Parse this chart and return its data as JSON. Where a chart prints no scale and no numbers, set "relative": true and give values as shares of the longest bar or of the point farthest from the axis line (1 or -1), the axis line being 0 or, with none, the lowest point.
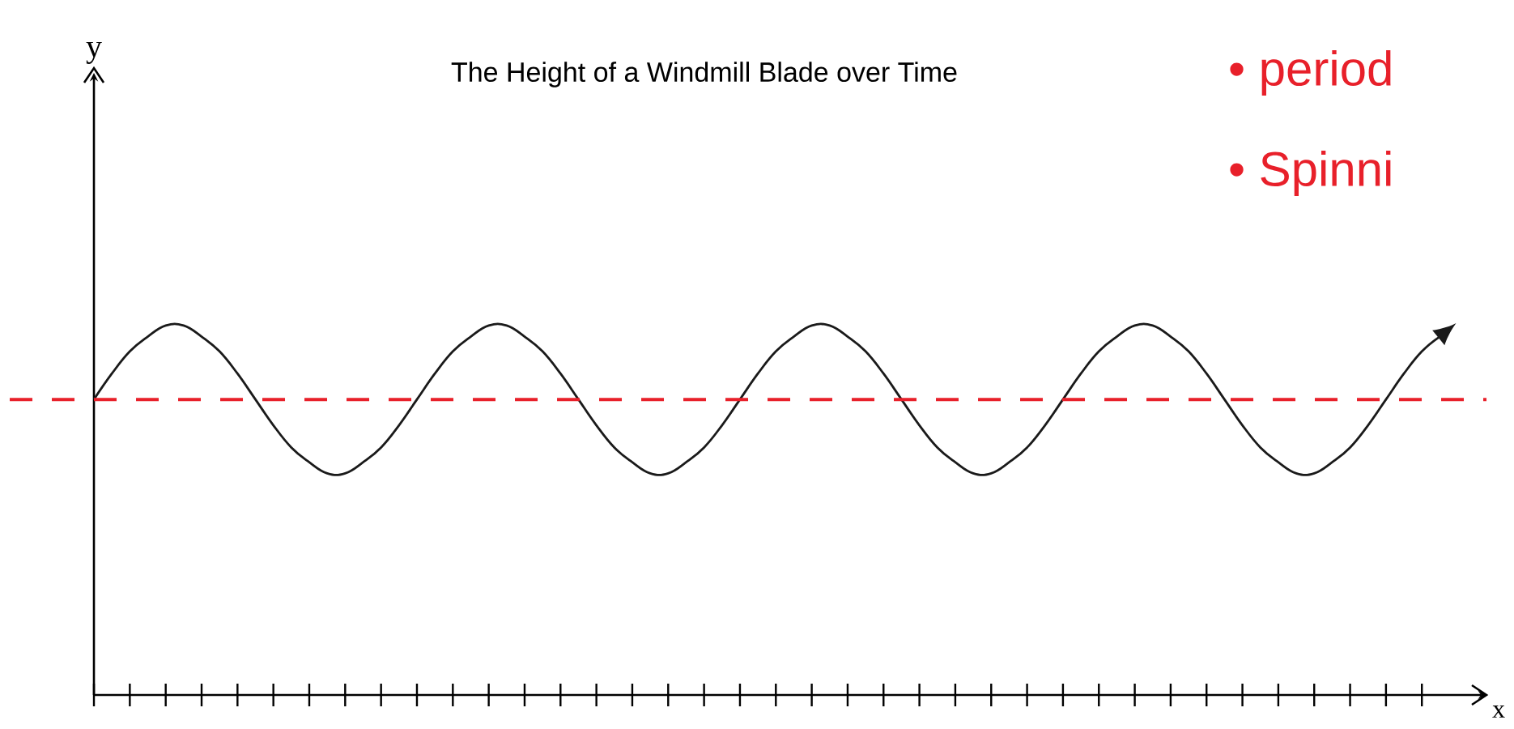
{
  "chart_data": {
    "type": "line",
    "title": "The Height of a Windmill Blade over Time",
    "relative": true,
    "marker": "none",
    "tick_labels": false,
    "categories": [
      null,
      null,
      null,
      null,
      null,
      null,
      null,
      null,
      null,
      null,
      null,
      null,
      null,
      null,
      null,
      null,
      null,
      null,
      null,
      null,
      null,
      null,
      null,
      null,
      null,
      null,
      null,
      null,
      null,
      null,
      null,
      null,
      null,
      null,
      null,
      null,
      null,
      null,
      null,
      null,
      null,
      null,
      null,
      null,
      null,
      null,
      null,
      null,
      null,
      null,
      null,
      null,
      null,
      null,
      null,
      null,
      null,
      null,
      null,
      null,
      null,
      null,
      null,
      null,
      null,
      null,
      null,
      null,
      null,
      null,
      null,
      null,
      null,
      null,
      null,
      null
    ],
    "series": [
      {
        "color": "#1a1a1a",
        "values": [
          0.8,
          0.87,
          0.93,
          0.97,
          1.0,
          1.0,
          0.97,
          0.93,
          0.87,
          0.8,
          0.73,
          0.67,
          0.63,
          0.6,
          0.6,
          0.63,
          0.67,
          0.73,
          0.8,
          0.87,
          0.93,
          0.97,
          1.0,
          1.0,
          0.97,
          0.93,
          0.87,
          0.8,
          0.73,
          0.67,
          0.63,
          0.6,
          0.6,
          0.63,
          0.67,
          0.73,
          0.8,
          0.87,
          0.93,
          0.97,
          1.0,
          1.0,
          0.97,
          0.93,
          0.87,
          0.8,
          0.73,
          0.67,
          0.63,
          0.6,
          0.6,
          0.63,
          0.67,
          0.73,
          0.8,
          0.87,
          0.93,
          0.97,
          1.0,
          1.0,
          0.97,
          0.93,
          0.87,
          0.8,
          0.73,
          0.67,
          0.63,
          0.6,
          0.6,
          0.63,
          0.67,
          0.73,
          0.8,
          0.87,
          0.93,
          0.97
        ]
      }
    ],
    "ref_lines": [
      {
        "axis": "y",
        "value": 0.8,
        "color": "#e8202a",
        "line_style": "dashed"
      }
    ],
    "annotations": [
      "y",
      "• period",
      "• Spinni",
      "x"
    ]
  }
}
